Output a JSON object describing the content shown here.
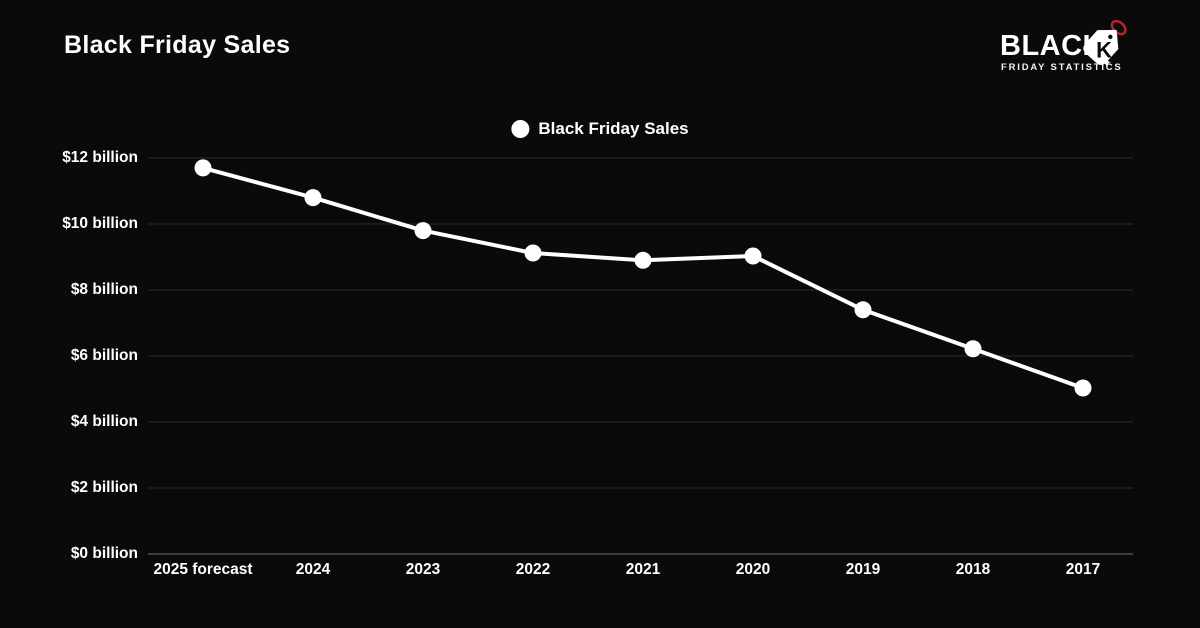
{
  "header": {
    "title": "Black Friday Sales"
  },
  "logo": {
    "word": "BLACK",
    "tag_letter": "K",
    "subtitle": "FRIDAY STATISTICS",
    "accent_color": "#b5242c"
  },
  "chart_data": {
    "type": "line",
    "title": "Black Friday Sales",
    "legend": [
      {
        "label": "Black Friday Sales",
        "marker": "circle",
        "color": "#ffffff"
      }
    ],
    "legend_position": "top-center",
    "categories": [
      "2025 forecast",
      "2024",
      "2023",
      "2022",
      "2021",
      "2020",
      "2019",
      "2018",
      "2017"
    ],
    "series": [
      {
        "name": "Black Friday Sales",
        "color": "#ffffff",
        "values": [
          11.7,
          10.8,
          9.8,
          9.12,
          8.9,
          9.03,
          7.4,
          6.22,
          5.03
        ]
      }
    ],
    "y_ticks": [
      {
        "value": 12,
        "label": "$12 billion"
      },
      {
        "value": 10,
        "label": "$10 billion"
      },
      {
        "value": 8,
        "label": "$8 billion"
      },
      {
        "value": 6,
        "label": "$6 billion"
      },
      {
        "value": 4,
        "label": "$4 billion"
      },
      {
        "value": 2,
        "label": "$2 billion"
      },
      {
        "value": 0,
        "label": "$0 billion"
      }
    ],
    "ylim": [
      0,
      12
    ],
    "grid": true,
    "colors": {
      "background": "#0a0a0a",
      "text": "#ffffff",
      "grid": "#2c2c2c",
      "axis": "#505050",
      "series": "#ffffff"
    }
  }
}
